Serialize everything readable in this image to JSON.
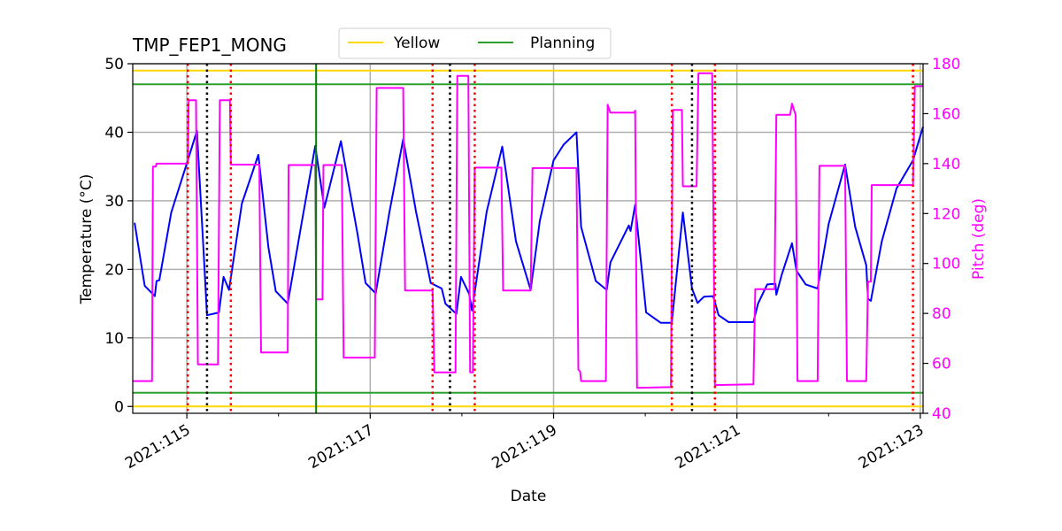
{
  "chart_data": {
    "type": "line",
    "title": "TMP_FEP1_MONG",
    "xlabel": "Date",
    "ylabel": "Temperature ($^\\circ$C)",
    "ylabel_display": "Temperature (°C)",
    "y2label": "Pitch (deg)",
    "xlim": [
      114.41,
      123.03
    ],
    "ylim": [
      -1,
      50
    ],
    "y2lim": [
      40,
      180
    ],
    "grid": true,
    "legend_placement": "top-center, above plot",
    "x_ticks": [
      {
        "value": 115,
        "label": "2021:115"
      },
      {
        "value": 117,
        "label": "2021:117"
      },
      {
        "value": 119,
        "label": "2021:119"
      },
      {
        "value": 121,
        "label": "2021:121"
      },
      {
        "value": 123,
        "label": "2021:123"
      }
    ],
    "x_minor_ticks": [
      116,
      118,
      120,
      122
    ],
    "y_ticks": [
      0,
      10,
      20,
      30,
      40,
      50
    ],
    "y2_ticks": [
      40,
      60,
      80,
      100,
      120,
      140,
      160,
      180
    ],
    "colors": {
      "temperature": "#0000ff",
      "pitch": "#ff00ff",
      "yellow": "#ffd700",
      "planning": "#2ca02c",
      "red_marker": "#ff0000",
      "black_marker": "#000000",
      "green_marker": "#008000",
      "pitch_axis": "#ff00ff",
      "grid": "#b0b0b0"
    },
    "legend": [
      {
        "label": "Yellow",
        "color": "#ffd700"
      },
      {
        "label": "Planning",
        "color": "#2ca02c"
      }
    ],
    "limit_lines": [
      {
        "kind": "yellow",
        "value": 49
      },
      {
        "kind": "yellow",
        "value": 0
      },
      {
        "kind": "planning",
        "value": 47
      },
      {
        "kind": "planning",
        "value": 2
      }
    ],
    "vertical_markers": {
      "red_dotted": [
        115.01,
        115.48,
        117.68,
        118.14,
        120.29,
        120.76,
        122.92
      ],
      "black_dotted": [
        115.22,
        117.87,
        120.51
      ],
      "green_solid": [
        116.41
      ]
    },
    "series": [
      {
        "axis": "left",
        "color": "#0000ff",
        "points": [
          [
            114.43,
            26.8
          ],
          [
            114.54,
            17.6
          ],
          [
            114.65,
            16.1
          ],
          [
            114.67,
            18.3
          ],
          [
            114.7,
            18.4
          ],
          [
            114.83,
            28.3
          ],
          [
            115.01,
            35.9
          ],
          [
            115.11,
            40.2
          ],
          [
            115.18,
            23.2
          ],
          [
            115.22,
            13.3
          ],
          [
            115.35,
            13.7
          ],
          [
            115.4,
            18.9
          ],
          [
            115.46,
            17.0
          ],
          [
            115.6,
            29.6
          ],
          [
            115.78,
            36.7
          ],
          [
            115.89,
            23.2
          ],
          [
            115.97,
            16.8
          ],
          [
            116.1,
            15.0
          ],
          [
            116.25,
            26.6
          ],
          [
            116.4,
            38.0
          ],
          [
            116.5,
            29.0
          ],
          [
            116.68,
            38.7
          ],
          [
            116.86,
            25.3
          ],
          [
            116.95,
            18.0
          ],
          [
            117.06,
            16.5
          ],
          [
            117.21,
            28.4
          ],
          [
            117.36,
            39.0
          ],
          [
            117.5,
            28.4
          ],
          [
            117.66,
            18.0
          ],
          [
            117.78,
            17.2
          ],
          [
            117.82,
            15.0
          ],
          [
            117.94,
            13.5
          ],
          [
            117.99,
            18.9
          ],
          [
            118.08,
            16.4
          ],
          [
            118.11,
            14.0
          ],
          [
            118.27,
            28.4
          ],
          [
            118.44,
            37.9
          ],
          [
            118.59,
            24.1
          ],
          [
            118.75,
            17.0
          ],
          [
            118.85,
            27.1
          ],
          [
            119.0,
            35.9
          ],
          [
            119.11,
            38.2
          ],
          [
            119.25,
            40.0
          ],
          [
            119.3,
            26.2
          ],
          [
            119.46,
            18.3
          ],
          [
            119.58,
            17.0
          ],
          [
            119.62,
            21.0
          ],
          [
            119.82,
            26.4
          ],
          [
            119.84,
            25.6
          ],
          [
            119.89,
            29.4
          ],
          [
            120.01,
            13.7
          ],
          [
            120.17,
            12.2
          ],
          [
            120.29,
            12.2
          ],
          [
            120.41,
            28.3
          ],
          [
            120.51,
            17.2
          ],
          [
            120.57,
            15.1
          ],
          [
            120.64,
            16.0
          ],
          [
            120.74,
            16.1
          ],
          [
            120.8,
            13.3
          ],
          [
            120.91,
            12.3
          ],
          [
            121.18,
            12.3
          ],
          [
            121.23,
            15.0
          ],
          [
            121.33,
            17.8
          ],
          [
            121.42,
            17.9
          ],
          [
            121.43,
            16.3
          ],
          [
            121.49,
            19.3
          ],
          [
            121.6,
            23.8
          ],
          [
            121.65,
            19.8
          ],
          [
            121.75,
            17.8
          ],
          [
            121.88,
            17.2
          ],
          [
            122.0,
            26.6
          ],
          [
            122.18,
            35.3
          ],
          [
            122.29,
            26.2
          ],
          [
            122.41,
            20.6
          ],
          [
            122.43,
            15.7
          ],
          [
            122.46,
            15.4
          ],
          [
            122.58,
            24.1
          ],
          [
            122.74,
            31.8
          ],
          [
            122.92,
            35.9
          ],
          [
            123.03,
            40.8
          ]
        ]
      },
      {
        "axis": "right",
        "color": "#ff00ff",
        "points": [
          [
            114.41,
            52.9
          ],
          [
            114.62,
            52.9
          ],
          [
            114.63,
            138.8
          ],
          [
            114.66,
            138.8
          ],
          [
            114.67,
            140
          ],
          [
            115.01,
            140
          ],
          [
            115.02,
            165.4
          ],
          [
            115.1,
            165.4
          ],
          [
            115.12,
            59.6
          ],
          [
            115.34,
            59.6
          ],
          [
            115.36,
            165.4
          ],
          [
            115.47,
            165.4
          ],
          [
            115.48,
            139.6
          ],
          [
            115.79,
            139.6
          ],
          [
            115.81,
            64.4
          ],
          [
            116.1,
            64.4
          ],
          [
            116.11,
            139.4
          ],
          [
            116.4,
            139.4
          ],
          [
            116.41,
            85.6
          ],
          [
            116.48,
            85.6
          ],
          [
            116.49,
            139.4
          ],
          [
            116.69,
            139.4
          ],
          [
            116.71,
            62.3
          ],
          [
            117.05,
            62.3
          ],
          [
            117.07,
            170.3
          ],
          [
            117.36,
            170.3
          ],
          [
            117.38,
            89.2
          ],
          [
            117.68,
            89.2
          ],
          [
            117.7,
            56.4
          ],
          [
            117.93,
            56.4
          ],
          [
            117.95,
            175.1
          ],
          [
            118.07,
            175.1
          ],
          [
            118.09,
            56.4
          ],
          [
            118.12,
            56.4
          ],
          [
            118.14,
            138.4
          ],
          [
            118.43,
            138.4
          ],
          [
            118.45,
            89.2
          ],
          [
            118.75,
            89.2
          ],
          [
            118.77,
            138.2
          ],
          [
            119.25,
            138.2
          ],
          [
            119.27,
            57.5
          ],
          [
            119.29,
            56.7
          ],
          [
            119.3,
            52.9
          ],
          [
            119.57,
            52.9
          ],
          [
            119.59,
            163.6
          ],
          [
            119.62,
            160.4
          ],
          [
            119.88,
            160.4
          ],
          [
            119.89,
            161.2
          ],
          [
            119.91,
            50.2
          ],
          [
            120.28,
            50.5
          ],
          [
            120.3,
            161.5
          ],
          [
            120.4,
            161.5
          ],
          [
            120.41,
            130.9
          ],
          [
            120.56,
            130.9
          ],
          [
            120.58,
            176.2
          ],
          [
            120.73,
            176.2
          ],
          [
            120.76,
            51.3
          ],
          [
            121.18,
            51.6
          ],
          [
            121.2,
            89.7
          ],
          [
            121.41,
            89.7
          ],
          [
            121.43,
            159.5
          ],
          [
            121.58,
            159.5
          ],
          [
            121.6,
            164
          ],
          [
            121.64,
            159.5
          ],
          [
            121.66,
            52.9
          ],
          [
            121.88,
            52.9
          ],
          [
            121.9,
            139.1
          ],
          [
            122.18,
            139.1
          ],
          [
            122.2,
            52.9
          ],
          [
            122.41,
            52.9
          ],
          [
            122.43,
            92.7
          ],
          [
            122.46,
            92.7
          ],
          [
            122.47,
            131.4
          ],
          [
            122.92,
            131.4
          ],
          [
            122.94,
            171
          ],
          [
            123.03,
            171
          ]
        ]
      }
    ]
  }
}
